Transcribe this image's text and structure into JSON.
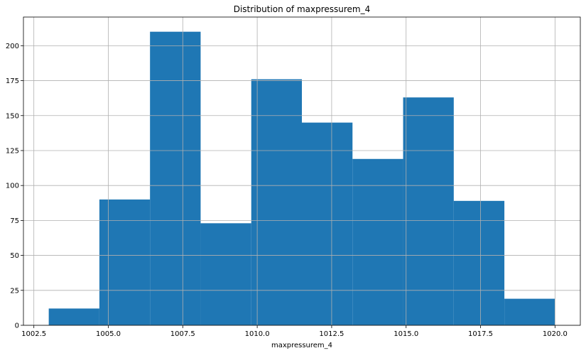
{
  "chart_data": {
    "type": "bar",
    "title": "Distribution of maxpressurem_4",
    "xlabel": "maxpressurem_4",
    "ylabel": "",
    "bin_edges": [
      1003.0,
      1004.7,
      1006.4,
      1008.1,
      1009.8,
      1011.5,
      1013.2,
      1014.9,
      1016.6,
      1018.3,
      1020.0
    ],
    "values": [
      12,
      90,
      210,
      73,
      176,
      145,
      119,
      163,
      89,
      19
    ],
    "xlim": [
      1002.15,
      1020.85
    ],
    "ylim": [
      0,
      220.5
    ],
    "xticks": [
      1002.5,
      1005.0,
      1007.5,
      1010.0,
      1012.5,
      1015.0,
      1017.5,
      1020.0
    ],
    "xtick_labels": [
      "1002.5",
      "1005.0",
      "1007.5",
      "1010.0",
      "1012.5",
      "1015.0",
      "1017.5",
      "1020.0"
    ],
    "yticks": [
      0,
      25,
      50,
      75,
      100,
      125,
      150,
      175,
      200
    ],
    "ytick_labels": [
      "0",
      "25",
      "50",
      "75",
      "100",
      "125",
      "150",
      "175",
      "200"
    ],
    "grid": true,
    "bar_color": "#1f77b4"
  }
}
